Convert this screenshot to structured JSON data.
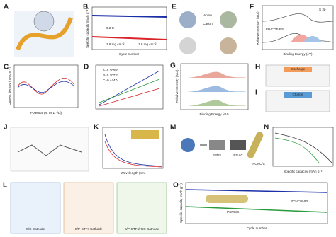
{
  "panels": [
    {
      "label": "A"
    },
    {
      "label": "B",
      "texts": [
        "Cycle number",
        "Specific capacity (mAh g⁻¹)",
        "0.2 C",
        "2.8 mg cm⁻²",
        "1.8 mg cm⁻²"
      ]
    },
    {
      "label": "E",
      "texts": [
        "Anion",
        "Cation"
      ]
    },
    {
      "label": "F",
      "texts": [
        "S 2p",
        "EB-COF-PS",
        "Binding Energy (eV)",
        "Relative Intensity (a.u.)"
      ]
    },
    {
      "label": "C",
      "texts": [
        "Potential (V, vs Li⁺/Li)",
        "Current density (mA cm⁻²)"
      ]
    },
    {
      "label": "D",
      "texts": [
        "A=0.20093",
        "B=0.20731",
        "C=0.44474"
      ]
    },
    {
      "label": "G",
      "texts": [
        "Binding Energy (eV)",
        "Relative Intensity (a.u.)"
      ]
    },
    {
      "label": "H",
      "texts": [
        "Discharge"
      ]
    },
    {
      "label": "I",
      "texts": [
        "Charge"
      ]
    },
    {
      "label": "J"
    },
    {
      "label": "K",
      "texts": [
        "Wavelength (nm)"
      ]
    },
    {
      "label": "M",
      "texts": [
        "PPNS",
        "RGAC",
        "PCNC/S"
      ]
    },
    {
      "label": "N",
      "texts": [
        "Specific capacity (mAh g⁻¹)"
      ]
    },
    {
      "label": "L",
      "texts": [
        "S/C Cathode",
        "S/P-CTFs Cathode",
        "S/P-CTFs/rGO Cathode"
      ]
    },
    {
      "label": "O",
      "texts": [
        "Cycle number",
        "Specific capacity (mAh g⁻¹)",
        "PCNC/S",
        "PCNC/S-90"
      ]
    }
  ]
}
